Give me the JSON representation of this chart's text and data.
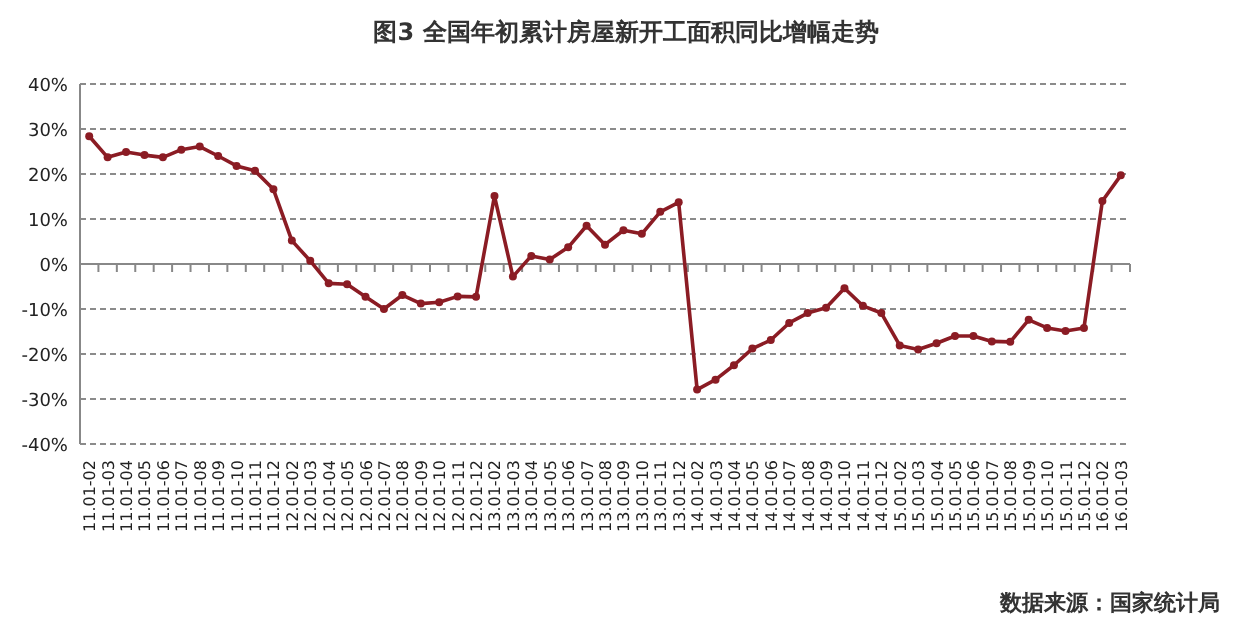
{
  "chart_data": {
    "type": "line",
    "title": "图3  全国年初累计房屋新开工面积同比增幅走势",
    "categories": [
      "11.01-02",
      "11.01-03",
      "11.01-04",
      "11.01-05",
      "11.01-06",
      "11.01-07",
      "11.01-08",
      "11.01-09",
      "11.01-10",
      "11.01-11",
      "11.01-12",
      "12.01-02",
      "12.01-03",
      "12.01-04",
      "12.01-05",
      "12.01-06",
      "12.01-07",
      "12.01-08",
      "12.01-09",
      "12.01-10",
      "12.01-11",
      "12.01-12",
      "13.01-02",
      "13.01-03",
      "13.01-04",
      "13.01-05",
      "13.01-06",
      "13.01-07",
      "13.01-08",
      "13.01-09",
      "13.01-10",
      "13.01-11",
      "13.01-12",
      "14.01-02",
      "14.01-03",
      "14.01-04",
      "14.01-05",
      "14.01-06",
      "14.01-07",
      "14.01-08",
      "14.01-09",
      "14.01-10",
      "14.01-11",
      "14.01-12",
      "15.01-02",
      "15.01-03",
      "15.01-04",
      "15.01-05",
      "15.01-06",
      "15.01-07",
      "15.01-08",
      "15.01-09",
      "15.01-10",
      "15.01-11",
      "15.01-12",
      "16.01-02",
      "16.01-03"
    ],
    "series": [
      {
        "color": "#8b1c24",
        "values": [
          28.4,
          23.7,
          24.9,
          24.2,
          23.7,
          25.4,
          26.1,
          24.0,
          21.8,
          20.7,
          16.6,
          5.2,
          0.7,
          -4.3,
          -4.5,
          -7.3,
          -10.0,
          -6.9,
          -8.8,
          -8.5,
          -7.2,
          -7.3,
          15.1,
          -2.8,
          1.8,
          1.0,
          3.7,
          8.5,
          4.3,
          7.5,
          6.7,
          11.6,
          13.7,
          -27.9,
          -25.7,
          -22.5,
          -18.8,
          -16.9,
          -13.1,
          -10.9,
          -9.7,
          -5.4,
          -9.3,
          -10.9,
          -18.1,
          -19.0,
          -17.6,
          -16.0,
          -16.0,
          -17.2,
          -17.3,
          -12.4,
          -14.2,
          -14.9,
          -14.2,
          14.0,
          19.7
        ]
      }
    ],
    "ylim": [
      -40,
      40
    ],
    "yticks": [
      {
        "value": -40,
        "label": "-40%"
      },
      {
        "value": -30,
        "label": "-30%"
      },
      {
        "value": -20,
        "label": "-20%"
      },
      {
        "value": -10,
        "label": "-10%"
      },
      {
        "value": 0,
        "label": "0%"
      },
      {
        "value": 10,
        "label": "10%"
      },
      {
        "value": 20,
        "label": "20%"
      },
      {
        "value": 30,
        "label": "30%"
      },
      {
        "value": 40,
        "label": "40%"
      }
    ],
    "grid": "y",
    "marker": "circle",
    "line_style": "solid",
    "annotations": [
      "数据来源：国家统计局"
    ]
  }
}
